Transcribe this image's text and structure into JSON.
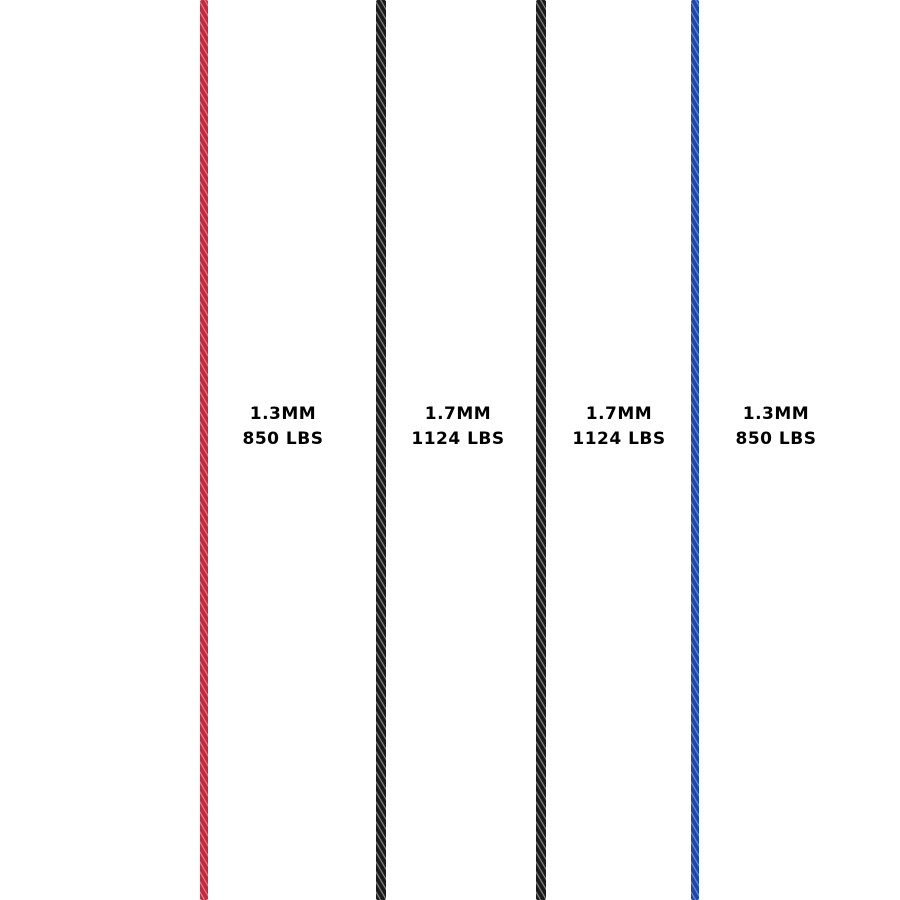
{
  "ropes": [
    {
      "color": "#c4283c",
      "highlight": "#e8909a",
      "diameter": "1.3MM",
      "strength": "850 LBS"
    },
    {
      "color": "#1a1a1a",
      "highlight": "#9a9a9a",
      "diameter": "1.7MM",
      "strength": "1124 LBS"
    },
    {
      "color": "#1a1a1a",
      "highlight": "#9a9a9a",
      "diameter": "1.7MM",
      "strength": "1124 LBS"
    },
    {
      "color": "#1c46b0",
      "highlight": "#7b9be0",
      "diameter": "1.3MM",
      "strength": "850 LBS"
    }
  ]
}
